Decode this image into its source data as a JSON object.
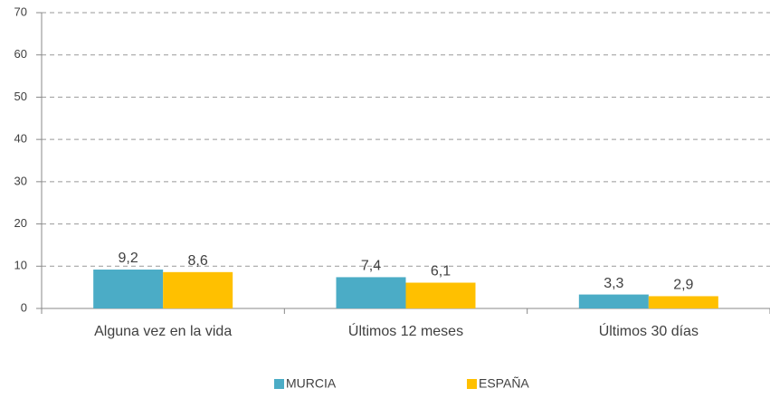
{
  "chart_data": {
    "type": "bar",
    "categories": [
      "Alguna vez en la vida",
      "Últimos 12 meses",
      "Últimos 30 días"
    ],
    "series": [
      {
        "name": "MURCIA",
        "color": "#4bacc6",
        "values": [
          9.2,
          7.4,
          3.3
        ],
        "value_labels": [
          "9,2",
          "7,4",
          "3,3"
        ]
      },
      {
        "name": "ESPAÑA",
        "color": "#ffc000",
        "values": [
          8.6,
          6.1,
          2.9
        ],
        "value_labels": [
          "8,6",
          "6,1",
          "2,9"
        ]
      }
    ],
    "ylim": [
      0,
      70
    ],
    "yticks": [
      0,
      10,
      20,
      30,
      40,
      50,
      60,
      70
    ],
    "grid": true
  }
}
